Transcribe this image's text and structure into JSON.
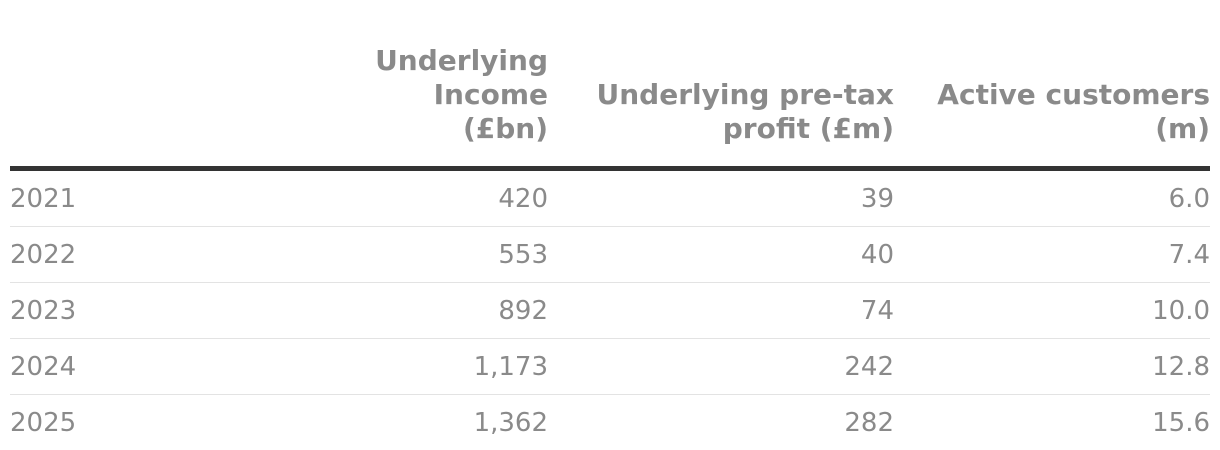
{
  "chart_data": {
    "type": "table",
    "columns": [
      "",
      "Underlying Income\n(£bn)",
      "Underlying pre-tax\nprofit (£m)",
      "Active customers\n(m)"
    ],
    "rows": [
      [
        "2021",
        "420",
        "39",
        "6.0"
      ],
      [
        "2022",
        "553",
        "40",
        "7.4"
      ],
      [
        "2023",
        "892",
        "74",
        "10.0"
      ],
      [
        "2024",
        "1,173",
        "242",
        "12.8"
      ],
      [
        "2025",
        "1,362",
        "282",
        "15.6"
      ]
    ]
  }
}
